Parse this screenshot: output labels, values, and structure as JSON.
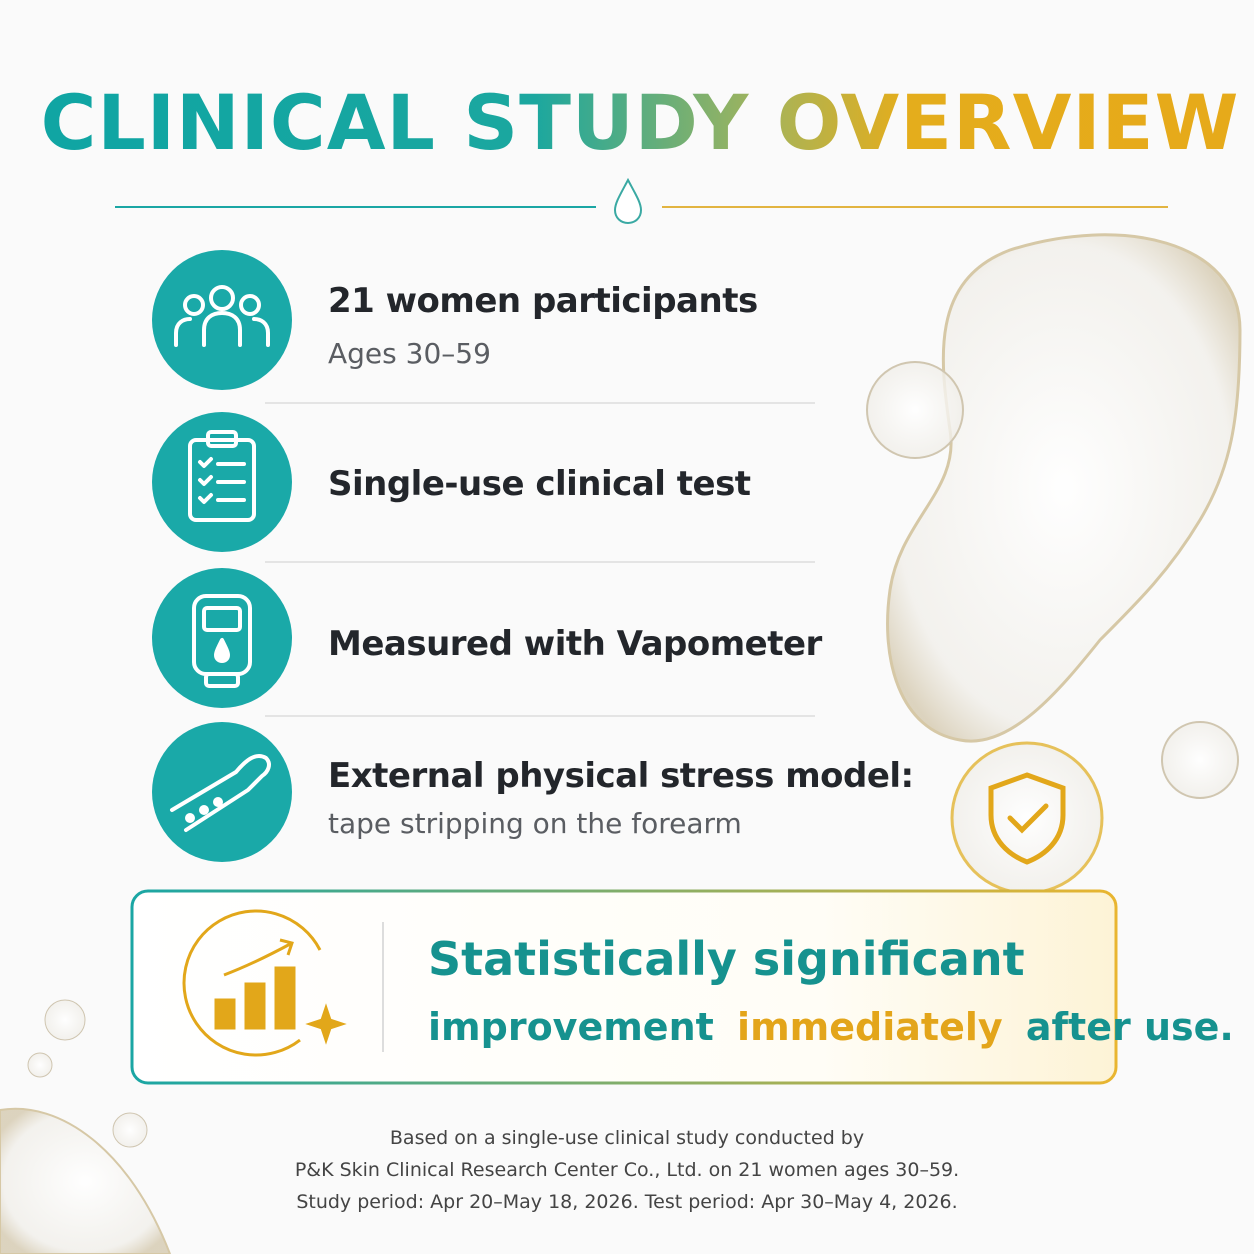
{
  "header": {
    "title": "CLINICAL STUDY OVERVIEW"
  },
  "items": [
    {
      "title": "21 women participants",
      "subtitle": "Ages 30–59"
    },
    {
      "title": "Single-use clinical test"
    },
    {
      "title": "Measured with Vapometer"
    },
    {
      "title": "External physical stress model:",
      "subtitle": "tape stripping on the forearm"
    }
  ],
  "callout": {
    "line1": "Statistically significant",
    "line2": [
      "improvement",
      "immediately",
      "after use."
    ]
  },
  "footnote": [
    "Based on a single-use clinical study conducted by",
    "P&K Skin Clinical Research Center Co., Ltd. on 21 women ages 30–59.",
    "Study period: Apr 20–May 18, 2026. Test period: Apr 30–May 4, 2026."
  ]
}
